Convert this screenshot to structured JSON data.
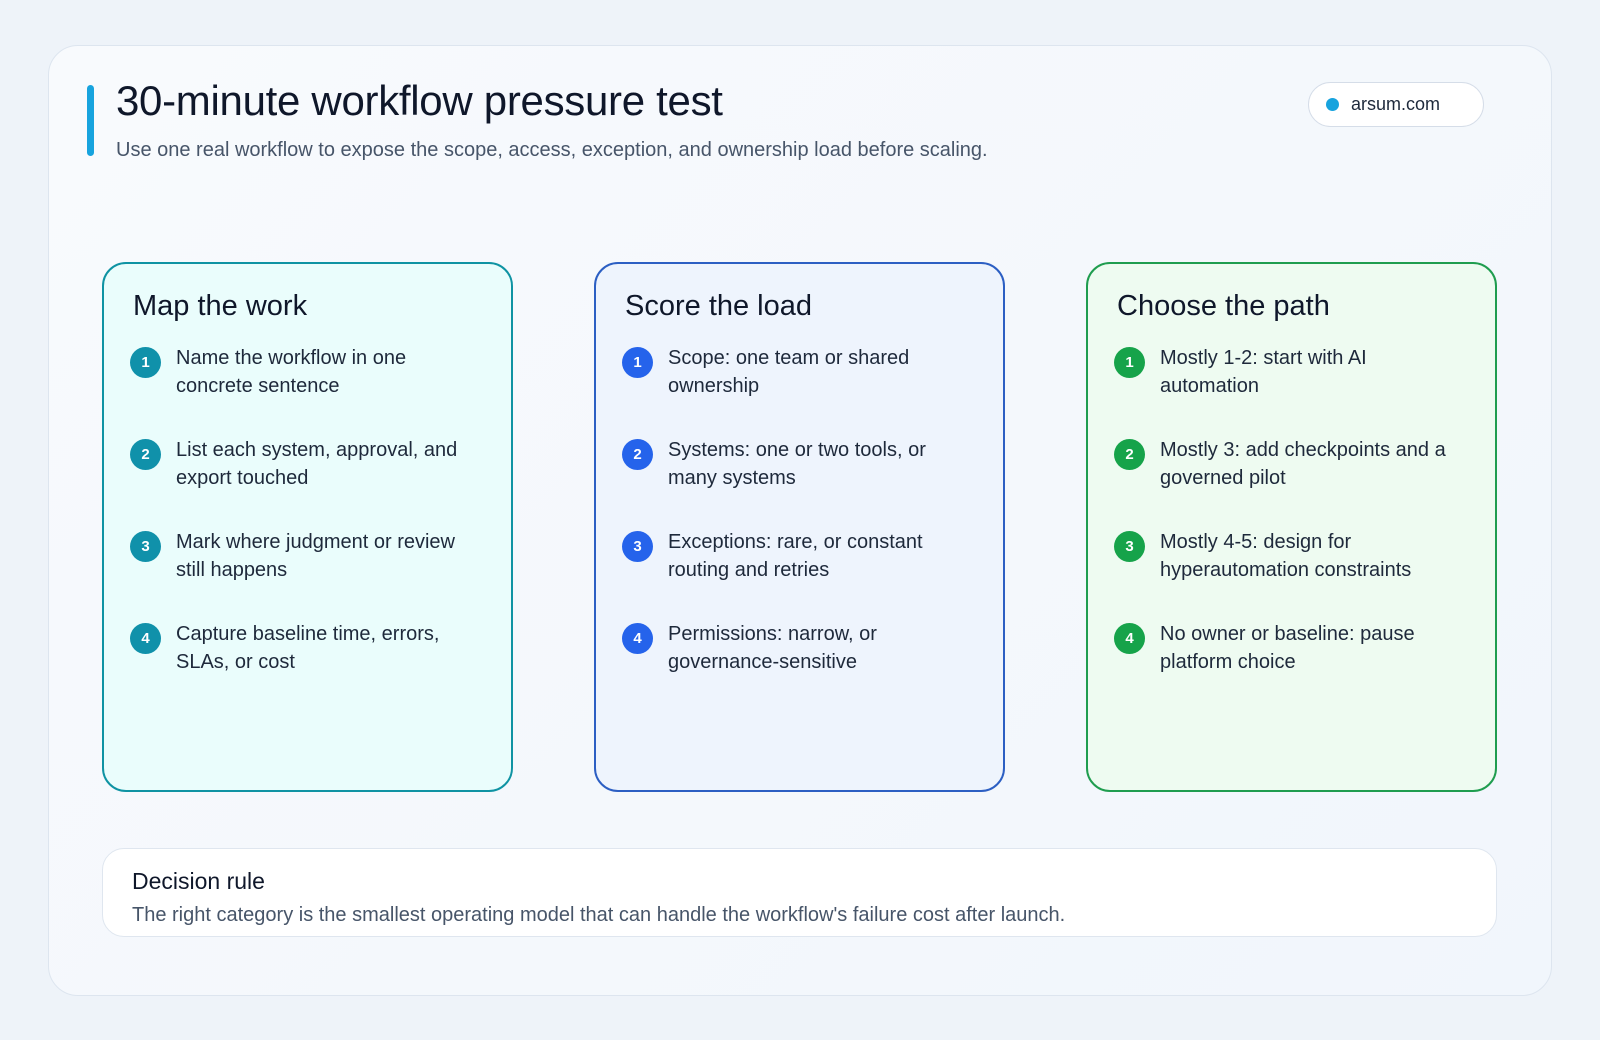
{
  "header": {
    "title": "30-minute workflow pressure test",
    "subtitle": "Use one real workflow to expose the scope, access, exception, and ownership load before scaling.",
    "badge": "arsum.com"
  },
  "columns": [
    {
      "title": "Map the work",
      "items": [
        {
          "number": 1,
          "text": "Name the workflow in one concrete sentence"
        },
        {
          "number": 2,
          "text": "List each system, approval, and export touched"
        },
        {
          "number": 3,
          "text": "Mark where judgment or review still happens"
        },
        {
          "number": 4,
          "text": "Capture baseline time, errors, SLAs, or cost"
        }
      ]
    },
    {
      "title": "Score the load",
      "items": [
        {
          "number": 1,
          "text": "Scope: one team or shared ownership"
        },
        {
          "number": 2,
          "text": "Systems: one or two tools, or many systems"
        },
        {
          "number": 3,
          "text": "Exceptions: rare, or constant routing and retries"
        },
        {
          "number": 4,
          "text": "Permissions: narrow, or governance-sensitive"
        }
      ]
    },
    {
      "title": "Choose the path",
      "items": [
        {
          "number": 1,
          "text": "Mostly 1-2: start with AI automation"
        },
        {
          "number": 2,
          "text": "Mostly 3: add checkpoints and a governed pilot"
        },
        {
          "number": 3,
          "text": "Mostly 4-5: design for hyperautomation constraints"
        },
        {
          "number": 4,
          "text": "No owner or baseline: pause platform choice"
        }
      ]
    }
  ],
  "decision": {
    "title": "Decision rule",
    "text": "The right category is the smallest operating model that can handle the workflow's failure cost after launch."
  }
}
